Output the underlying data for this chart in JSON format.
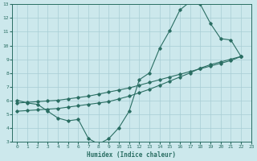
{
  "line1_x": [
    0,
    1,
    2,
    3,
    4,
    5,
    6,
    7,
    8,
    9,
    10,
    11,
    12,
    13,
    14,
    15,
    16,
    17,
    18,
    19,
    20,
    21,
    22
  ],
  "line1_y": [
    6.0,
    5.8,
    5.7,
    5.2,
    4.7,
    4.5,
    4.6,
    3.2,
    2.8,
    3.2,
    4.0,
    5.2,
    7.5,
    8.0,
    9.8,
    11.1,
    12.6,
    13.2,
    13.0,
    11.6,
    10.5,
    10.4,
    9.2
  ],
  "line2_x": [
    0,
    1,
    2,
    3,
    4,
    5,
    6,
    7,
    8,
    9,
    10,
    11,
    12,
    13,
    14,
    15,
    16,
    17,
    18,
    19,
    20,
    21,
    22
  ],
  "line2_y": [
    5.8,
    5.85,
    5.9,
    5.95,
    6.0,
    6.1,
    6.2,
    6.3,
    6.45,
    6.6,
    6.75,
    6.9,
    7.1,
    7.3,
    7.5,
    7.7,
    7.9,
    8.1,
    8.3,
    8.5,
    8.7,
    8.9,
    9.2
  ],
  "line3_x": [
    0,
    1,
    2,
    3,
    4,
    5,
    6,
    7,
    8,
    9,
    10,
    11,
    12,
    13,
    14,
    15,
    16,
    17,
    18,
    19,
    20,
    21,
    22
  ],
  "line3_y": [
    5.2,
    5.25,
    5.3,
    5.35,
    5.4,
    5.5,
    5.6,
    5.7,
    5.8,
    5.9,
    6.1,
    6.3,
    6.55,
    6.8,
    7.1,
    7.4,
    7.7,
    8.0,
    8.35,
    8.6,
    8.8,
    9.0,
    9.2
  ],
  "line_color": "#2a6e63",
  "bg_color": "#cce8ec",
  "grid_color": "#a8cdd4",
  "xlabel": "Humidex (Indice chaleur)",
  "xlim": [
    -0.5,
    23
  ],
  "ylim": [
    3,
    13
  ],
  "xticks": [
    0,
    1,
    2,
    3,
    4,
    5,
    6,
    7,
    8,
    9,
    10,
    11,
    12,
    13,
    14,
    15,
    16,
    17,
    18,
    19,
    20,
    21,
    22,
    23
  ],
  "yticks": [
    3,
    4,
    5,
    6,
    7,
    8,
    9,
    10,
    11,
    12,
    13
  ]
}
